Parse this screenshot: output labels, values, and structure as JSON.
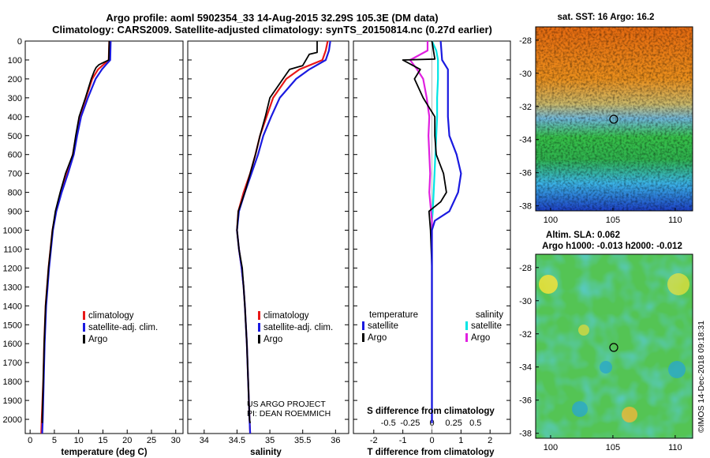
{
  "header": {
    "line1": "Argo profile: aoml 5902354_33 14-Aug-2015 32.29S 105.3E (DM data)",
    "line2": "Climatology: CARS2009. Satellite-adjusted climatology: synTS_20150814.nc (0.27d earlier)"
  },
  "credit": {
    "project": "US ARGO PROJECT",
    "pi": "PI: DEAN ROEMMICH",
    "imos": "©IMOS 14-Dec-2018 09:18:31"
  },
  "colors": {
    "climatology": "#e81818",
    "satellite": "#1a1ae0",
    "argo": "#000000",
    "sal_satellite": "#00e5e5",
    "sal_argo": "#e020e0"
  },
  "chart_data": [
    {
      "id": "temperature",
      "type": "line",
      "xlabel": "temperature (deg C)",
      "ylabel": "",
      "xlim": [
        -1,
        31.5
      ],
      "ylim": [
        2075,
        0
      ],
      "xticks": [
        "0",
        "5",
        "10",
        "15",
        "20",
        "25",
        "30"
      ],
      "yticks": [
        "0",
        "100",
        "200",
        "300",
        "400",
        "500",
        "600",
        "700",
        "800",
        "900",
        "1000",
        "1100",
        "1200",
        "1300",
        "1400",
        "1500",
        "1600",
        "1700",
        "1800",
        "1900",
        "2000"
      ],
      "legend": [
        "climatology",
        "satellite-adj. clim.",
        "Argo"
      ],
      "series": [
        {
          "name": "climatology",
          "depth": [
            0,
            100,
            120,
            150,
            200,
            300,
            400,
            500,
            600,
            700,
            800,
            900,
            1000,
            1200,
            1400,
            1600,
            1800,
            2000,
            2075
          ],
          "values": [
            16.3,
            16.2,
            15.3,
            14.0,
            12.8,
            11.5,
            10.2,
            9.5,
            8.8,
            7.6,
            6.3,
            5.3,
            4.6,
            3.8,
            3.2,
            2.9,
            2.7,
            2.4,
            2.3
          ]
        },
        {
          "name": "satellite-adj. clim.",
          "depth": [
            0,
            100,
            120,
            150,
            200,
            300,
            400,
            500,
            600,
            700,
            800,
            900,
            1000,
            1200,
            1400,
            1600,
            1800,
            2000,
            2075
          ],
          "values": [
            16.6,
            16.5,
            15.8,
            14.8,
            13.5,
            11.9,
            10.5,
            9.7,
            9.0,
            7.8,
            6.5,
            5.4,
            4.7,
            3.9,
            3.3,
            3.0,
            2.8,
            2.6,
            2.5
          ]
        },
        {
          "name": "Argo",
          "depth": [
            0,
            100,
            125,
            140,
            160,
            200,
            300,
            400,
            500,
            600,
            700,
            800,
            900,
            1000,
            1200,
            1400,
            1600,
            1800,
            2000,
            2020
          ],
          "values": [
            16.3,
            16.2,
            14.2,
            13.6,
            13.2,
            12.6,
            11.4,
            10.1,
            9.4,
            8.8,
            7.3,
            6.2,
            5.2,
            4.6,
            3.8,
            3.2,
            2.9,
            2.7,
            2.5,
            2.5
          ]
        }
      ]
    },
    {
      "id": "salinity",
      "type": "line",
      "xlabel": "salinity",
      "ylabel": "",
      "xlim": [
        33.75,
        36.2
      ],
      "ylim": [
        2075,
        0
      ],
      "xticks": [
        "34",
        "34.5",
        "35",
        "35.5",
        "36"
      ],
      "legend": [
        "climatology",
        "satellite-adj. clim.",
        "Argo"
      ],
      "series": [
        {
          "name": "climatology",
          "depth": [
            0,
            50,
            100,
            150,
            200,
            300,
            400,
            500,
            600,
            700,
            800,
            900,
            1000,
            1100,
            1200,
            1300,
            1400,
            1600,
            1800,
            2000,
            2075
          ],
          "values": [
            35.88,
            35.85,
            35.8,
            35.45,
            35.25,
            35.05,
            34.95,
            34.85,
            34.78,
            34.7,
            34.6,
            34.52,
            34.5,
            34.53,
            34.57,
            34.6,
            34.62,
            34.65,
            34.67,
            34.69,
            34.7
          ]
        },
        {
          "name": "satellite-adj. clim.",
          "depth": [
            0,
            50,
            100,
            150,
            200,
            300,
            400,
            500,
            600,
            700,
            800,
            900,
            1000,
            1100,
            1200,
            1300,
            1400,
            1600,
            1800,
            2000,
            2075
          ],
          "values": [
            35.92,
            35.9,
            35.85,
            35.6,
            35.4,
            35.15,
            35.02,
            34.9,
            34.82,
            34.72,
            34.62,
            34.53,
            34.5,
            34.53,
            34.57,
            34.6,
            34.62,
            34.65,
            34.67,
            34.69,
            34.7
          ]
        },
        {
          "name": "Argo",
          "depth": [
            0,
            60,
            70,
            130,
            150,
            200,
            300,
            400,
            500,
            600,
            700,
            800,
            900,
            1000,
            1100,
            1200,
            1300,
            1400,
            1600,
            1800,
            2000,
            2020
          ],
          "values": [
            35.72,
            35.72,
            35.6,
            35.5,
            35.3,
            35.2,
            35.0,
            34.93,
            34.85,
            34.78,
            34.7,
            34.62,
            34.52,
            34.5,
            34.53,
            34.58,
            34.6,
            34.62,
            34.65,
            34.67,
            34.69,
            34.7
          ]
        }
      ]
    },
    {
      "id": "difference",
      "type": "line",
      "xlabel": "T difference from climatology",
      "top_label": "S difference from climatology",
      "xlim": [
        -2.7,
        2.7
      ],
      "ylim": [
        2075,
        0
      ],
      "xticks": [
        "-2",
        "-1",
        "0",
        "1",
        "2"
      ],
      "s_ticks": [
        "-0.5",
        "-0.25",
        "0",
        "0.25",
        "0.5"
      ],
      "legend_temperature": {
        "heading": "temperature",
        "items": [
          "satellite",
          "Argo"
        ]
      },
      "legend_salinity": {
        "heading": "salinity",
        "items": [
          "satellite",
          "Argo"
        ]
      },
      "series": [
        {
          "name": "T satellite",
          "depth": [
            0,
            100,
            150,
            200,
            300,
            400,
            500,
            600,
            700,
            800,
            900,
            950,
            1000,
            1100,
            1200,
            1400,
            1600,
            1800,
            2000,
            2020
          ],
          "values": [
            0.3,
            0.35,
            0.55,
            0.55,
            0.55,
            0.55,
            0.6,
            0.85,
            1.0,
            0.9,
            0.6,
            0.1,
            0,
            0,
            0,
            0,
            0,
            0,
            0,
            0
          ]
        },
        {
          "name": "T Argo",
          "depth": [
            0,
            95,
            100,
            150,
            200,
            300,
            400,
            500,
            600,
            700,
            800,
            850,
            900,
            1000,
            1200,
            1400,
            1600,
            1800,
            2000,
            2020
          ],
          "values": [
            0.0,
            0.1,
            -1.0,
            -0.4,
            -0.6,
            -0.3,
            0.1,
            0.1,
            0.15,
            0.4,
            0.5,
            0.3,
            -0.1,
            -0.05,
            0,
            0,
            0,
            0,
            0,
            0
          ]
        },
        {
          "name": "S satellite",
          "depth": [
            0,
            50,
            100,
            200,
            300,
            400,
            500,
            600,
            700,
            800,
            900,
            950,
            1000,
            1100,
            1200,
            1400,
            1600,
            1800,
            2000,
            2020
          ],
          "values": [
            0.0,
            0.05,
            0.07,
            0.07,
            0.06,
            0.06,
            0.05,
            0.04,
            0.03,
            0.02,
            0.01,
            0.0,
            -0.01,
            0,
            0,
            0,
            0,
            0,
            0,
            0
          ]
        },
        {
          "name": "S Argo",
          "depth": [
            0,
            50,
            100,
            150,
            200,
            300,
            400,
            500,
            600,
            700,
            800,
            900,
            950,
            1000,
            1100,
            1200,
            1400,
            1600,
            1800,
            2000,
            2020
          ],
          "values": [
            -0.05,
            -0.05,
            -0.25,
            -0.17,
            -0.1,
            -0.06,
            -0.03,
            -0.04,
            -0.03,
            -0.02,
            -0.03,
            -0.01,
            0,
            0,
            0,
            0,
            0,
            0,
            0,
            0,
            0
          ]
        }
      ]
    },
    {
      "id": "sst_map",
      "type": "heatmap",
      "title": "sat. SST: 16 Argo: 16.2",
      "xticks": [
        "100",
        "105",
        "110"
      ],
      "yticks": [
        "-28",
        "-30",
        "-32",
        "-34",
        "-36",
        "-38"
      ],
      "marker": {
        "lon": 105.3,
        "lat": -32.29
      }
    },
    {
      "id": "sla_map",
      "type": "heatmap",
      "title": "Altim. SLA: 0.062",
      "subtitle": "Argo h1000: -0.013 h2000: -0.012",
      "xticks": [
        "100",
        "105",
        "110"
      ],
      "yticks": [
        "-28",
        "-30",
        "-32",
        "-34",
        "-36",
        "-38"
      ],
      "marker": {
        "lon": 105.3,
        "lat": -32.29
      }
    }
  ]
}
